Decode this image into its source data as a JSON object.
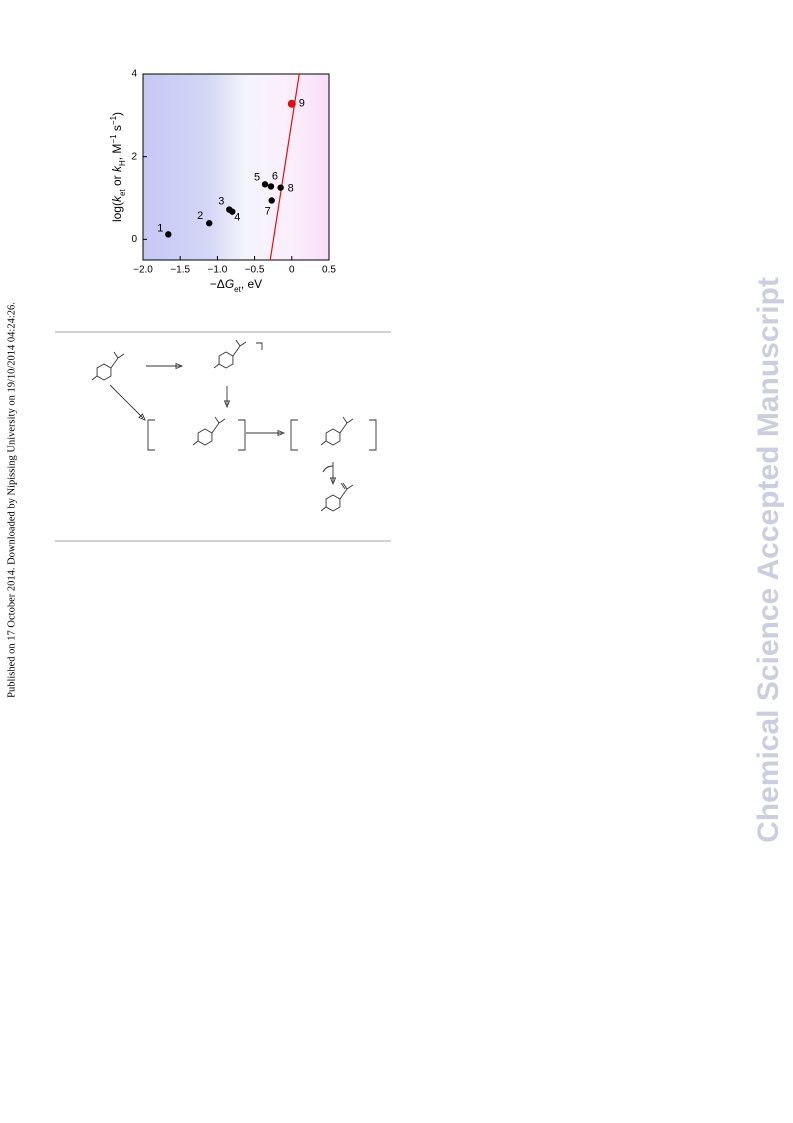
{
  "chart_data": {
    "type": "scatter",
    "xlabel": [
      "−Δ",
      "G",
      "et",
      ", eV"
    ],
    "ylabel": [
      "log(",
      "k",
      "et",
      " or ",
      "k",
      "H",
      ", M",
      "−1",
      " s",
      "−1",
      ")"
    ],
    "x": [
      -1.66,
      -1.11,
      -0.84,
      -0.8,
      -0.36,
      -0.28,
      -0.27,
      -0.15,
      0.0
    ],
    "values": [
      0.12,
      0.39,
      0.72,
      0.67,
      1.33,
      1.28,
      0.94,
      1.25,
      3.28
    ],
    "labels": [
      "1",
      "2",
      "3",
      "4",
      "5",
      "6",
      "7",
      "8",
      "9"
    ],
    "colors": [
      "#000000",
      "#000000",
      "#000000",
      "#000000",
      "#000000",
      "#000000",
      "#000000",
      "#000000",
      "#e01010"
    ],
    "line": {
      "x": [
        -0.29,
        0.1
      ],
      "values": [
        -0.5,
        4
      ],
      "color": "#e01010"
    },
    "xlim": [
      -2.0,
      0.5
    ],
    "ylim": [
      -0.5,
      4
    ],
    "xticks": [
      {
        "value": -2,
        "label": "−2.0"
      },
      {
        "value": -1.5,
        "label": "−1.5"
      },
      {
        "value": -1,
        "label": "−1.0"
      },
      {
        "value": -0.5,
        "label": "−0.5"
      },
      0,
      0.5
    ],
    "yticks": [
      0,
      2,
      4
    ]
  },
  "side_note": "Published on 17 October 2014. Downloaded by Nipissing University on 19/10/2014 04:24:26.",
  "watermark": "Chemical Science Accepted Manuscript"
}
